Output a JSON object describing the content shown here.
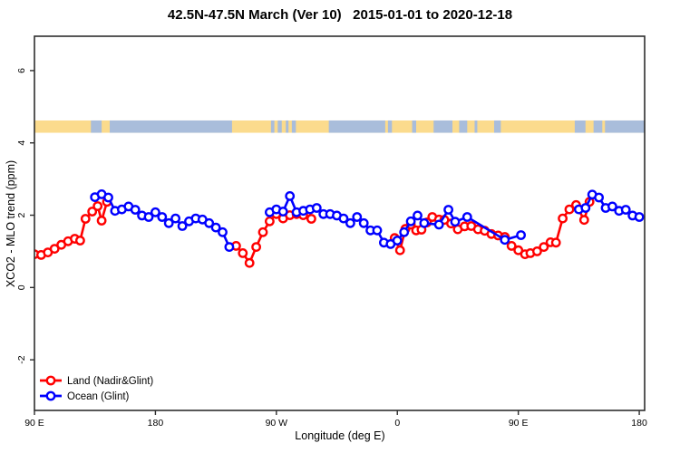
{
  "title": "42.5N-47.5N March (Ver 10)   2015-01-01 to 2020-12-18",
  "colors": {
    "land_series": "#ff0000",
    "ocean_series": "#0000ff",
    "band_land": "#fbdb8d",
    "band_ocean": "#a9bddb",
    "axis": "#2e2e2e",
    "background": "#ffffff"
  },
  "legend": {
    "items": [
      {
        "label": "Land (Nadir&Glint)",
        "series": "land"
      },
      {
        "label": "Ocean (Glint)",
        "series": "ocean"
      }
    ]
  },
  "chart_data": {
    "type": "line",
    "title": "42.5N-47.5N March (Ver 10)   2015-01-01 to 2020-12-18",
    "xlabel": "Longitude (deg E)",
    "ylabel": "XCO2 - MLO trend (ppm)",
    "xlim": [
      90,
      544
    ],
    "ylim": [
      -3.4,
      6.95
    ],
    "grid": false,
    "legend_position": "bottom-left",
    "x_ticks": [
      {
        "value": 90,
        "label": "90 E"
      },
      {
        "value": 180,
        "label": "180"
      },
      {
        "value": 270,
        "label": "90 W"
      },
      {
        "value": 360,
        "label": "0"
      },
      {
        "value": 450,
        "label": "90 E"
      },
      {
        "value": 540,
        "label": "180"
      }
    ],
    "y_ticks": [
      {
        "value": -2,
        "label": "-2"
      },
      {
        "value": 0,
        "label": "0"
      },
      {
        "value": 2,
        "label": "2"
      },
      {
        "value": 4,
        "label": "4"
      },
      {
        "value": 6,
        "label": "6"
      }
    ],
    "map_band": {
      "comment": "land/ocean strip for 42.5N-47.5N drawn across the top of the plot",
      "y_range": [
        4.28,
        4.62
      ],
      "base": "land",
      "ocean_segments": [
        [
          132,
          140
        ],
        [
          146,
          237
        ],
        [
          266,
          268.5
        ],
        [
          271,
          274
        ],
        [
          277,
          279
        ],
        [
          281.5,
          284.5
        ],
        [
          309,
          351
        ],
        [
          353,
          356
        ],
        [
          371,
          374
        ],
        [
          387,
          401
        ],
        [
          406,
          412
        ],
        [
          417.5,
          419.5
        ],
        [
          432,
          437
        ],
        [
          492,
          544
        ]
      ],
      "land_patches": [
        [
          500,
          506
        ],
        [
          512.5,
          514.5
        ]
      ]
    },
    "series": [
      {
        "id": "land",
        "name": "Land (Nadir&Glint)",
        "color": "#ff0000",
        "marker": "open-circle",
        "segments": [
          [
            [
              90,
              0.92
            ],
            [
              95,
              0.9
            ],
            [
              100,
              0.97
            ],
            [
              105,
              1.07
            ],
            [
              110,
              1.18
            ],
            [
              115,
              1.28
            ],
            [
              120,
              1.35
            ],
            [
              124,
              1.3
            ],
            [
              128,
              1.9
            ],
            [
              133,
              2.1
            ],
            [
              137,
              2.25
            ],
            [
              140,
              1.85
            ],
            [
              144,
              2.37
            ]
          ],
          [
            [
              240,
              1.15
            ],
            [
              245,
              0.95
            ],
            [
              250,
              0.68
            ],
            [
              255,
              1.12
            ],
            [
              260,
              1.53
            ],
            [
              265,
              1.83
            ],
            [
              270,
              2.03
            ],
            [
              275,
              1.91
            ],
            [
              280,
              2.0
            ],
            [
              285,
              2.03
            ],
            [
              290,
              2.0
            ],
            [
              296,
              1.9
            ]
          ],
          [
            [
              358,
              1.37
            ],
            [
              362,
              1.03
            ],
            [
              366,
              1.62
            ],
            [
              370,
              1.74
            ],
            [
              374,
              1.58
            ],
            [
              378,
              1.6
            ],
            [
              382,
              1.8
            ],
            [
              386,
              1.95
            ],
            [
              391,
              1.88
            ],
            [
              395,
              1.87
            ],
            [
              400,
              1.77
            ],
            [
              405,
              1.61
            ],
            [
              410,
              1.69
            ],
            [
              415,
              1.7
            ],
            [
              420,
              1.61
            ],
            [
              425,
              1.57
            ],
            [
              430,
              1.48
            ],
            [
              435,
              1.44
            ],
            [
              440,
              1.4
            ],
            [
              445,
              1.15
            ],
            [
              450,
              1.03
            ],
            [
              455,
              0.92
            ],
            [
              459,
              0.95
            ],
            [
              464,
              1.0
            ],
            [
              469,
              1.12
            ],
            [
              474,
              1.25
            ],
            [
              478,
              1.24
            ],
            [
              483,
              1.91
            ],
            [
              488,
              2.16
            ],
            [
              493,
              2.28
            ],
            [
              499,
              1.87
            ],
            [
              503,
              2.37
            ]
          ]
        ]
      },
      {
        "id": "ocean",
        "name": "Ocean (Glint)",
        "color": "#0000ff",
        "marker": "open-circle",
        "segments": [
          [
            [
              135,
              2.5
            ],
            [
              140,
              2.58
            ],
            [
              145,
              2.49
            ],
            [
              150,
              2.12
            ],
            [
              155,
              2.16
            ],
            [
              160,
              2.24
            ],
            [
              165,
              2.15
            ],
            [
              170,
              1.99
            ],
            [
              175,
              1.95
            ],
            [
              180,
              2.08
            ],
            [
              185,
              1.95
            ],
            [
              190,
              1.78
            ],
            [
              195,
              1.91
            ],
            [
              200,
              1.7
            ],
            [
              205,
              1.83
            ],
            [
              210,
              1.91
            ],
            [
              215,
              1.88
            ],
            [
              220,
              1.78
            ],
            [
              225,
              1.66
            ],
            [
              230,
              1.53
            ],
            [
              235,
              1.12
            ]
          ],
          [
            [
              265,
              2.08
            ],
            [
              270,
              2.16
            ],
            [
              275,
              2.1
            ],
            [
              280,
              2.53
            ],
            [
              285,
              2.08
            ],
            [
              290,
              2.12
            ],
            [
              295,
              2.16
            ],
            [
              300,
              2.2
            ],
            [
              305,
              2.03
            ],
            [
              310,
              2.03
            ],
            [
              315,
              1.99
            ],
            [
              320,
              1.91
            ],
            [
              325,
              1.78
            ],
            [
              330,
              1.95
            ],
            [
              335,
              1.78
            ],
            [
              340,
              1.58
            ],
            [
              345,
              1.58
            ],
            [
              350,
              1.24
            ],
            [
              355,
              1.2
            ],
            [
              360,
              1.3
            ],
            [
              365,
              1.53
            ],
            [
              370,
              1.83
            ],
            [
              375,
              1.99
            ],
            [
              380,
              1.78
            ],
            [
              391,
              1.74
            ],
            [
              398,
              2.15
            ],
            [
              403,
              1.82
            ],
            [
              412,
              1.95
            ],
            [
              440,
              1.32
            ],
            [
              452,
              1.45
            ]
          ],
          [
            [
              495,
              2.16
            ],
            [
              500,
              2.2
            ],
            [
              505,
              2.57
            ],
            [
              510,
              2.49
            ],
            [
              515,
              2.2
            ],
            [
              520,
              2.24
            ],
            [
              525,
              2.12
            ],
            [
              530,
              2.15
            ],
            [
              535,
              1.99
            ],
            [
              540,
              1.95
            ]
          ]
        ]
      }
    ]
  }
}
